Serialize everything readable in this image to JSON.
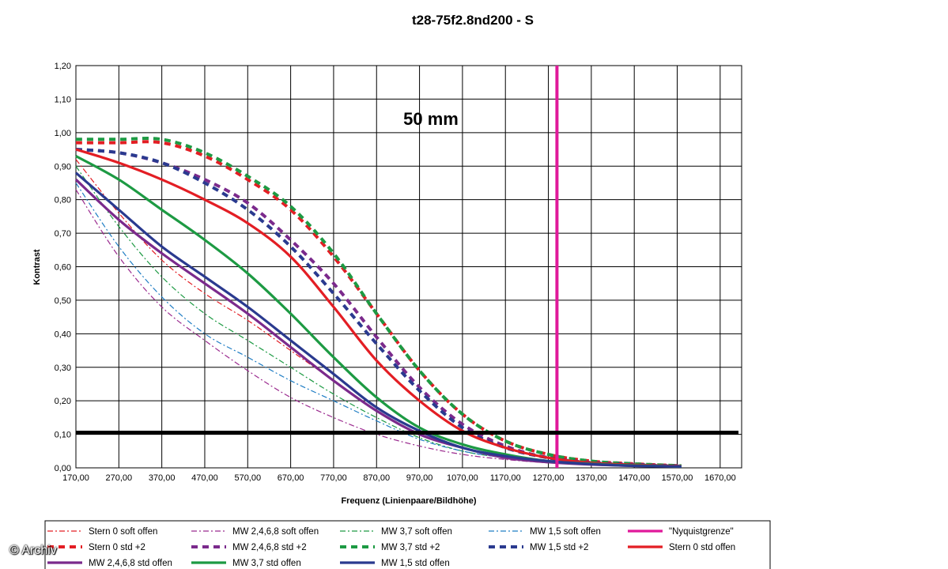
{
  "credit": "© Archiv",
  "chart_data": {
    "type": "line",
    "title": "t28-75f2.8nd200 - S",
    "annotation": "50 mm",
    "xlabel": "Frequenz (Linienpaare/Bildhöhe)",
    "ylabel": "Kontrast",
    "xlim": [
      170,
      1720
    ],
    "ylim": [
      0,
      1.2
    ],
    "xticks": [
      "170,00",
      "270,00",
      "370,00",
      "470,00",
      "570,00",
      "670,00",
      "770,00",
      "870,00",
      "970,00",
      "1070,00",
      "1170,00",
      "1270,00",
      "1370,00",
      "1470,00",
      "1570,00",
      "1670,00"
    ],
    "yticks": [
      "0,00",
      "0,10",
      "0,20",
      "0,30",
      "0,40",
      "0,50",
      "0,60",
      "0,70",
      "0,80",
      "0,90",
      "1,00",
      "1,10",
      "1,20"
    ],
    "grid": true,
    "legend_position": "bottom",
    "reference_lines": [
      {
        "name": "\"Nyquistgrenze\"",
        "orientation": "vertical",
        "x": 1290,
        "color": "#e0199a"
      },
      {
        "orientation": "horizontal",
        "y": 0.105,
        "color": "#000000"
      }
    ],
    "series": [
      {
        "name": "Stern 0 soft offen",
        "color": "#e31e24",
        "style": "dashdot-thin",
        "points": [
          [
            170,
            0.92
          ],
          [
            270,
            0.76
          ],
          [
            370,
            0.62
          ],
          [
            470,
            0.52
          ],
          [
            570,
            0.44
          ],
          [
            670,
            0.35
          ],
          [
            770,
            0.26
          ],
          [
            870,
            0.17
          ],
          [
            970,
            0.1
          ],
          [
            1070,
            0.06
          ],
          [
            1170,
            0.035
          ],
          [
            1270,
            0.02
          ],
          [
            1370,
            0.012
          ],
          [
            1470,
            0.007
          ],
          [
            1580,
            0.004
          ]
        ]
      },
      {
        "name": "MW 2,4,6,8 soft offen",
        "color": "#9b2b8f",
        "style": "dashdot-thin",
        "points": [
          [
            170,
            0.83
          ],
          [
            270,
            0.63
          ],
          [
            370,
            0.48
          ],
          [
            470,
            0.38
          ],
          [
            570,
            0.29
          ],
          [
            670,
            0.21
          ],
          [
            770,
            0.15
          ],
          [
            870,
            0.1
          ],
          [
            970,
            0.065
          ],
          [
            1070,
            0.04
          ],
          [
            1170,
            0.025
          ],
          [
            1270,
            0.015
          ],
          [
            1370,
            0.009
          ],
          [
            1470,
            0.006
          ],
          [
            1580,
            0.004
          ]
        ]
      },
      {
        "name": "MW 3,7 soft offen",
        "color": "#1d9a43",
        "style": "dashdot-thin",
        "points": [
          [
            170,
            0.9
          ],
          [
            270,
            0.72
          ],
          [
            370,
            0.57
          ],
          [
            470,
            0.46
          ],
          [
            570,
            0.38
          ],
          [
            670,
            0.3
          ],
          [
            770,
            0.22
          ],
          [
            870,
            0.15
          ],
          [
            970,
            0.09
          ],
          [
            1070,
            0.05
          ],
          [
            1170,
            0.03
          ],
          [
            1270,
            0.018
          ],
          [
            1370,
            0.01
          ],
          [
            1470,
            0.006
          ],
          [
            1580,
            0.004
          ]
        ]
      },
      {
        "name": "MW 1,5 soft offen",
        "color": "#1f7dc4",
        "style": "dashdot-thin",
        "points": [
          [
            170,
            0.85
          ],
          [
            270,
            0.66
          ],
          [
            370,
            0.51
          ],
          [
            470,
            0.4
          ],
          [
            570,
            0.33
          ],
          [
            670,
            0.26
          ],
          [
            770,
            0.2
          ],
          [
            870,
            0.14
          ],
          [
            970,
            0.085
          ],
          [
            1070,
            0.05
          ],
          [
            1170,
            0.03
          ],
          [
            1270,
            0.017
          ],
          [
            1370,
            0.01
          ],
          [
            1470,
            0.006
          ],
          [
            1580,
            0.004
          ]
        ]
      },
      {
        "name": "\"Nyquistgrenze\"",
        "color": "#e0199a",
        "style": "solid-thick",
        "points": []
      },
      {
        "name": "Stern 0 std +2",
        "color": "#e31e24",
        "style": "dash-thick",
        "points": [
          [
            170,
            0.97
          ],
          [
            270,
            0.97
          ],
          [
            370,
            0.97
          ],
          [
            470,
            0.93
          ],
          [
            570,
            0.86
          ],
          [
            670,
            0.77
          ],
          [
            770,
            0.63
          ],
          [
            870,
            0.46
          ],
          [
            970,
            0.29
          ],
          [
            1070,
            0.16
          ],
          [
            1170,
            0.08
          ],
          [
            1270,
            0.04
          ],
          [
            1370,
            0.02
          ],
          [
            1470,
            0.012
          ],
          [
            1580,
            0.006
          ]
        ]
      },
      {
        "name": "MW 2,4,6,8 std +2",
        "color": "#7b2a8c",
        "style": "dash-thick",
        "points": [
          [
            170,
            0.95
          ],
          [
            270,
            0.94
          ],
          [
            370,
            0.91
          ],
          [
            470,
            0.86
          ],
          [
            570,
            0.79
          ],
          [
            670,
            0.68
          ],
          [
            770,
            0.55
          ],
          [
            870,
            0.39
          ],
          [
            970,
            0.24
          ],
          [
            1070,
            0.13
          ],
          [
            1170,
            0.065
          ],
          [
            1270,
            0.03
          ],
          [
            1370,
            0.016
          ],
          [
            1470,
            0.01
          ],
          [
            1580,
            0.005
          ]
        ]
      },
      {
        "name": "MW 3,7 std +2",
        "color": "#1d9a43",
        "style": "dash-thick",
        "points": [
          [
            170,
            0.98
          ],
          [
            270,
            0.98
          ],
          [
            370,
            0.98
          ],
          [
            470,
            0.94
          ],
          [
            570,
            0.87
          ],
          [
            670,
            0.78
          ],
          [
            770,
            0.64
          ],
          [
            870,
            0.46
          ],
          [
            970,
            0.29
          ],
          [
            1070,
            0.16
          ],
          [
            1170,
            0.08
          ],
          [
            1270,
            0.04
          ],
          [
            1370,
            0.02
          ],
          [
            1470,
            0.012
          ],
          [
            1580,
            0.006
          ]
        ]
      },
      {
        "name": "MW 1,5 std +2",
        "color": "#2a3a8f",
        "style": "dash-thick",
        "points": [
          [
            170,
            0.95
          ],
          [
            270,
            0.94
          ],
          [
            370,
            0.91
          ],
          [
            470,
            0.85
          ],
          [
            570,
            0.77
          ],
          [
            670,
            0.66
          ],
          [
            770,
            0.52
          ],
          [
            870,
            0.37
          ],
          [
            970,
            0.23
          ],
          [
            1070,
            0.12
          ],
          [
            1170,
            0.06
          ],
          [
            1270,
            0.03
          ],
          [
            1370,
            0.015
          ],
          [
            1470,
            0.009
          ],
          [
            1580,
            0.005
          ]
        ]
      },
      {
        "name": "Stern 0 std offen",
        "color": "#e31e24",
        "style": "solid-thick",
        "points": [
          [
            170,
            0.95
          ],
          [
            270,
            0.91
          ],
          [
            370,
            0.86
          ],
          [
            470,
            0.8
          ],
          [
            570,
            0.73
          ],
          [
            670,
            0.63
          ],
          [
            770,
            0.48
          ],
          [
            870,
            0.32
          ],
          [
            970,
            0.2
          ],
          [
            1070,
            0.11
          ],
          [
            1170,
            0.06
          ],
          [
            1270,
            0.03
          ],
          [
            1370,
            0.015
          ],
          [
            1470,
            0.009
          ],
          [
            1580,
            0.005
          ]
        ]
      },
      {
        "name": "MW 2,4,6,8 std offen",
        "color": "#7b2a8c",
        "style": "solid-thick",
        "points": [
          [
            170,
            0.86
          ],
          [
            270,
            0.74
          ],
          [
            370,
            0.64
          ],
          [
            470,
            0.55
          ],
          [
            570,
            0.46
          ],
          [
            670,
            0.36
          ],
          [
            770,
            0.26
          ],
          [
            870,
            0.17
          ],
          [
            970,
            0.1
          ],
          [
            1070,
            0.06
          ],
          [
            1170,
            0.03
          ],
          [
            1270,
            0.017
          ],
          [
            1370,
            0.01
          ],
          [
            1470,
            0.006
          ],
          [
            1580,
            0.004
          ]
        ]
      },
      {
        "name": "MW 3,7 std offen",
        "color": "#1d9a43",
        "style": "solid-thick",
        "points": [
          [
            170,
            0.93
          ],
          [
            270,
            0.86
          ],
          [
            370,
            0.77
          ],
          [
            470,
            0.68
          ],
          [
            570,
            0.58
          ],
          [
            670,
            0.46
          ],
          [
            770,
            0.33
          ],
          [
            870,
            0.21
          ],
          [
            970,
            0.12
          ],
          [
            1070,
            0.07
          ],
          [
            1170,
            0.04
          ],
          [
            1270,
            0.02
          ],
          [
            1370,
            0.012
          ],
          [
            1470,
            0.007
          ],
          [
            1580,
            0.004
          ]
        ]
      },
      {
        "name": "MW 1,5 std offen",
        "color": "#2a3a8f",
        "style": "solid-thick",
        "points": [
          [
            170,
            0.88
          ],
          [
            270,
            0.77
          ],
          [
            370,
            0.66
          ],
          [
            470,
            0.57
          ],
          [
            570,
            0.48
          ],
          [
            670,
            0.38
          ],
          [
            770,
            0.28
          ],
          [
            870,
            0.18
          ],
          [
            970,
            0.11
          ],
          [
            1070,
            0.06
          ],
          [
            1170,
            0.035
          ],
          [
            1270,
            0.02
          ],
          [
            1370,
            0.011
          ],
          [
            1470,
            0.006
          ],
          [
            1580,
            0.004
          ]
        ]
      }
    ]
  }
}
